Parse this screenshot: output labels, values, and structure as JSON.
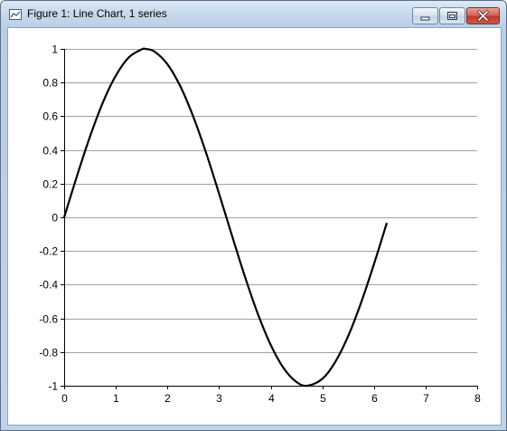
{
  "window": {
    "title": "Figure 1: Line Chart, 1 series",
    "icon": "chart-icon",
    "controls": [
      "minimize-icon",
      "maximize-icon",
      "close-icon"
    ]
  },
  "chart_data": {
    "type": "line",
    "title": "",
    "xlabel": "",
    "ylabel": "",
    "xlim": [
      0,
      8
    ],
    "ylim": [
      -1,
      1
    ],
    "x_ticks": [
      0,
      1,
      2,
      3,
      4,
      5,
      6,
      7,
      8
    ],
    "y_ticks": [
      1,
      0.8,
      0.6,
      0.4,
      0.2,
      0,
      -0.2,
      -0.4,
      -0.6,
      -0.8,
      -1
    ],
    "grid": "horizontal",
    "legend": "none",
    "line_color": "#000000",
    "series": [
      {
        "x": [
          0,
          0.25,
          0.5,
          0.75,
          1,
          1.25,
          1.5,
          1.571,
          1.75,
          2,
          2.25,
          2.5,
          2.75,
          3,
          3.25,
          3.5,
          3.75,
          4,
          4.25,
          4.5,
          4.712,
          5,
          5.25,
          5.5,
          5.75,
          6,
          6.25
        ],
        "y": [
          0,
          0.247,
          0.479,
          0.682,
          0.841,
          0.949,
          0.997,
          1,
          0.984,
          0.909,
          0.778,
          0.598,
          0.382,
          0.141,
          -0.108,
          -0.351,
          -0.572,
          -0.757,
          -0.895,
          -0.978,
          -1,
          -0.959,
          -0.859,
          -0.706,
          -0.508,
          -0.279,
          -0.033
        ]
      }
    ]
  }
}
